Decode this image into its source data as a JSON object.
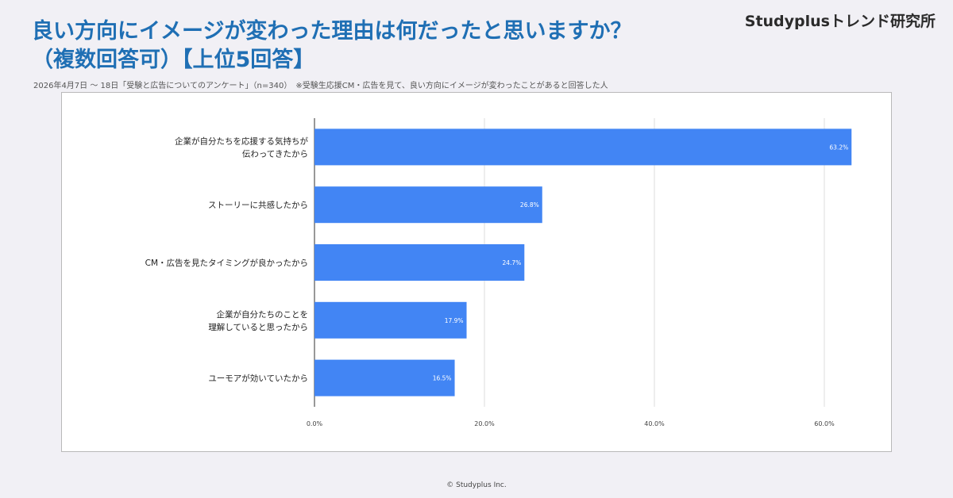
{
  "header": {
    "title_line1": "良い方向にイメージが変わった理由は何だったと思いますか？",
    "title_line2": "（複数回答可）【上位5回答】",
    "brand": "Studyplusトレンド研究所",
    "note": "2026年4月7日 〜 18日「受験と広告についてのアンケート」（n=340）　※受験生応援CM・広告を見て、良い方向にイメージが変わったことがあると回答した人"
  },
  "footer": {
    "copyright": "© Studyplus Inc."
  },
  "colors": {
    "bar": "#4285f4",
    "title": "#1f6fb4",
    "grid": "#dddddd"
  },
  "chart_data": {
    "type": "bar",
    "orientation": "horizontal",
    "categories": [
      [
        "企業が自分たちを応援する気持ちが",
        "伝わってきたから"
      ],
      [
        "ストーリーに共感したから"
      ],
      [
        "CM・広告を見たタイミングが良かったから"
      ],
      [
        "企業が自分たちのことを",
        "理解していると思ったから"
      ],
      [
        "ユーモアが効いていたから"
      ]
    ],
    "values": [
      63.2,
      26.8,
      24.7,
      17.9,
      16.5
    ],
    "value_labels": [
      "63.2%",
      "26.8%",
      "24.7%",
      "17.9%",
      "16.5%"
    ],
    "xlim": [
      0,
      60
    ],
    "xticks": [
      0,
      20,
      40,
      60
    ],
    "xtick_labels": [
      "0.0%",
      "20.0%",
      "40.0%",
      "60.0%"
    ],
    "grid": true
  }
}
